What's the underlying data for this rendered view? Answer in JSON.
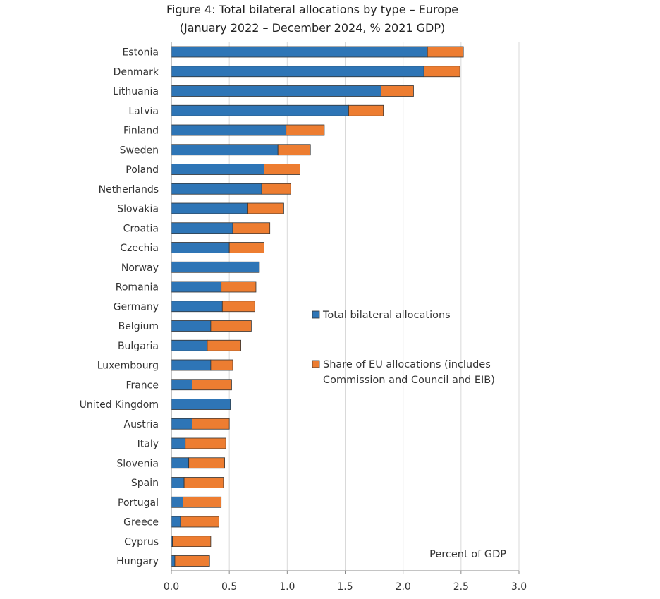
{
  "chart_data": {
    "type": "bar",
    "orientation": "horizontal",
    "stacked": true,
    "title": "Figure 4: Total bilateral allocations by type – Europe",
    "subtitle": "(January 2022 – December 2024, % 2021 GDP)",
    "xlabel": "Percent of GDP",
    "xlim": [
      0,
      3
    ],
    "xticks": [
      "0.0",
      "0.5",
      "1.0",
      "1.5",
      "2.0",
      "2.5",
      "3.0"
    ],
    "grid": true,
    "legend_position": "right, middle",
    "categories": [
      "Estonia",
      "Denmark",
      "Lithuania",
      "Latvia",
      "Finland",
      "Sweden",
      "Poland",
      "Netherlands",
      "Slovakia",
      "Croatia",
      "Czechia",
      "Norway",
      "Romania",
      "Germany",
      "Belgium",
      "Bulgaria",
      "Luxembourg",
      "France",
      "United Kingdom",
      "Austria",
      "Italy",
      "Slovenia",
      "Spain",
      "Portugal",
      "Greece",
      "Cyprus",
      "Hungary"
    ],
    "series": [
      {
        "name": "Total bilateral allocations",
        "color": "#2e75b6",
        "values": [
          2.21,
          2.18,
          1.81,
          1.53,
          0.99,
          0.92,
          0.8,
          0.78,
          0.66,
          0.53,
          0.5,
          0.76,
          0.43,
          0.44,
          0.34,
          0.31,
          0.34,
          0.18,
          0.51,
          0.18,
          0.12,
          0.15,
          0.11,
          0.1,
          0.08,
          0.01,
          0.03
        ]
      },
      {
        "name": "Share of EU allocations (includes Commission and Council and EIB)",
        "legend_lines": [
          "Share of EU allocations (includes",
          "Commission and Council and EIB)"
        ],
        "color": "#ed7d31",
        "values": [
          0.31,
          0.31,
          0.28,
          0.3,
          0.33,
          0.28,
          0.31,
          0.25,
          0.31,
          0.32,
          0.3,
          0.0,
          0.3,
          0.28,
          0.35,
          0.29,
          0.19,
          0.34,
          0.0,
          0.32,
          0.35,
          0.31,
          0.34,
          0.33,
          0.33,
          0.33,
          0.3
        ]
      }
    ]
  }
}
